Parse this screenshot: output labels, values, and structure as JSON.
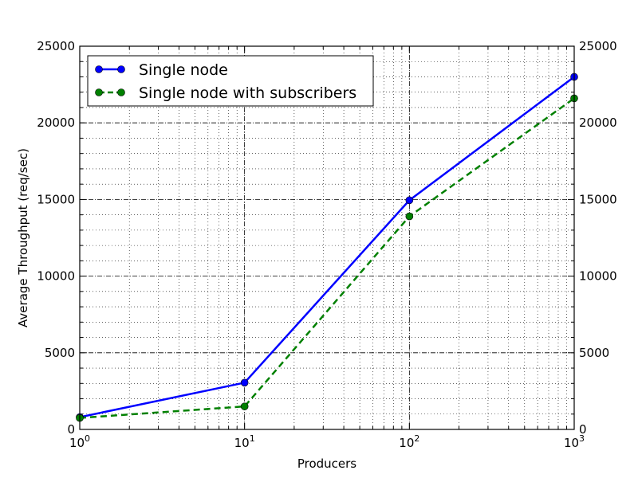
{
  "chart_data": {
    "type": "line",
    "xscale": "log",
    "xlabel": "Producers",
    "ylabel": "Average Throughput (req/sec)",
    "xlim": [
      1,
      1000
    ],
    "ylim": [
      0,
      25000
    ],
    "x": [
      1,
      10,
      100,
      1000
    ],
    "x_tick_labels": [
      {
        "base": "10",
        "exp": "0"
      },
      {
        "base": "10",
        "exp": "1"
      },
      {
        "base": "10",
        "exp": "2"
      },
      {
        "base": "10",
        "exp": "3"
      }
    ],
    "y_ticks": [
      0,
      5000,
      10000,
      15000,
      20000,
      25000
    ],
    "y_tick_labels": [
      "0",
      "5000",
      "10000",
      "15000",
      "20000",
      "25000"
    ],
    "grid": true,
    "legend_position": "top-left",
    "series": [
      {
        "name": "Single node",
        "values": [
          800,
          3050,
          14950,
          23000
        ],
        "color": "#0000ff",
        "style": "solid",
        "marker": "circle"
      },
      {
        "name": "Single node with subscribers",
        "values": [
          750,
          1500,
          13900,
          21600
        ],
        "color": "#008000",
        "style": "dashed",
        "marker": "circle"
      }
    ]
  }
}
